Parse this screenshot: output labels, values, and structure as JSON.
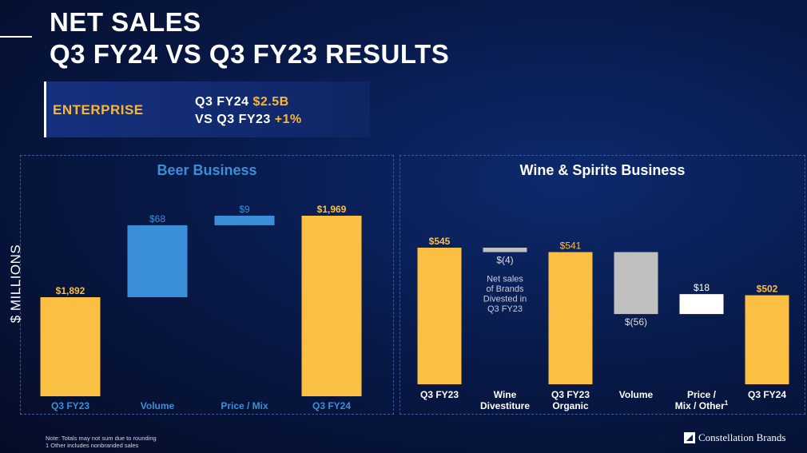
{
  "header": {
    "title_line1": "NET SALES",
    "title_line2": "Q3 FY24 VS Q3 FY23 RESULTS"
  },
  "banner": {
    "label": "ENTERPRISE",
    "line1_prefix": "Q3 FY24 ",
    "line1_value": "$2.5B",
    "line2_prefix": "VS Q3 FY23 ",
    "line2_value": "+1%"
  },
  "y_axis_label": "$ MILLIONS",
  "colors": {
    "gold": "#fbbf43",
    "blue": "#3a8fd8",
    "gray": "#bfbfbf",
    "white": "#ffffff"
  },
  "chart_data": [
    {
      "type": "bar",
      "subtype": "waterfall",
      "title": "Beer Business",
      "categories": [
        "Q3 FY23",
        "Volume",
        "Price / Mix",
        "Q3 FY24"
      ],
      "bars": [
        {
          "category": "Q3 FY23",
          "kind": "total",
          "value": 1892,
          "label": "$1,892",
          "color": "gold"
        },
        {
          "category": "Volume",
          "kind": "delta",
          "value": 68,
          "label": "$68",
          "color": "blue"
        },
        {
          "category": "Price / Mix",
          "kind": "delta",
          "value": 9,
          "label": "$9",
          "color": "blue"
        },
        {
          "category": "Q3 FY24",
          "kind": "total",
          "value": 1969,
          "label": "$1,969",
          "color": "gold"
        }
      ]
    },
    {
      "type": "bar",
      "subtype": "waterfall",
      "title": "Wine & Spirits Business",
      "categories": [
        "Q3 FY23",
        "Wine Divestiture",
        "Q3 FY23 Organic",
        "Volume",
        "Price / Mix / Other",
        "Q3 FY24"
      ],
      "bars": [
        {
          "category": "Q3 FY23",
          "kind": "total",
          "value": 545,
          "label": "$545",
          "color": "gold"
        },
        {
          "category": "Wine Divestiture",
          "kind": "delta",
          "value": -4,
          "label": "$(4)",
          "color": "gray",
          "annotation": [
            "Net sales",
            "of Brands",
            "Divested in",
            "Q3 FY23"
          ]
        },
        {
          "category": "Q3 FY23 Organic",
          "kind": "total",
          "value": 541,
          "label": "$541",
          "color": "gold"
        },
        {
          "category": "Volume",
          "kind": "delta",
          "value": -56,
          "label": "$(56)",
          "color": "gray"
        },
        {
          "category": "Price / Mix / Other",
          "kind": "delta",
          "value": 18,
          "label": "$18",
          "color": "white",
          "superscript": "1"
        },
        {
          "category": "Q3 FY24",
          "kind": "total",
          "value": 502,
          "label": "$502",
          "color": "gold"
        }
      ]
    }
  ],
  "footer": {
    "note1": "Note: Totals may not sum due to rounding",
    "note2": "1 Other includes nonbranded sales",
    "logo_text": "Constellation Brands"
  }
}
